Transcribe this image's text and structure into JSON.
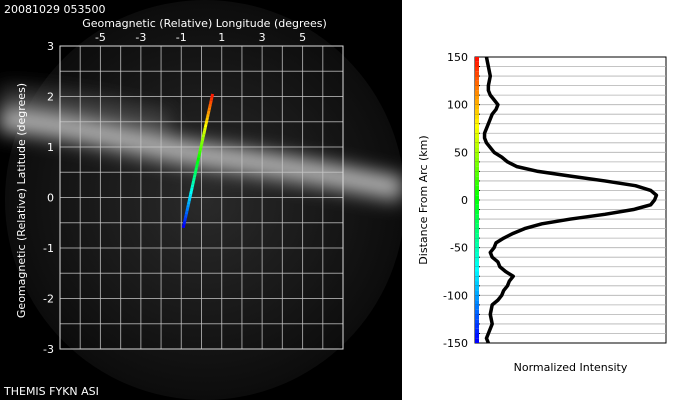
{
  "timestamp": "20081029 053500",
  "footer": "THEMIS FYKN ASI",
  "colors": {
    "background": "#000000",
    "grid": "#c8c8c8",
    "profile": "#000000"
  },
  "chart_data": [
    {
      "type": "scatter",
      "title": "",
      "xlabel": "Geomagnetic (Relative) Longitude (degrees)",
      "ylabel": "Geomagnetic (Relative) Latitude (degrees)",
      "xlim": [
        -7,
        7
      ],
      "ylim": [
        -3,
        3
      ],
      "xticks": [
        -5,
        -3,
        -1,
        1,
        3,
        5
      ],
      "yticks": [
        -3,
        -2,
        -1,
        0,
        1,
        2,
        3
      ],
      "grid": true,
      "series": [
        {
          "x_start": -0.9,
          "y_start": -0.6,
          "x_end": 0.55,
          "y_end": 2.05,
          "color_scale": "blue-to-red"
        }
      ]
    },
    {
      "type": "line",
      "title": "",
      "xlabel": "Normalized Intensity",
      "ylabel": "Distance From Arc (km)",
      "ylim": [
        -150,
        150
      ],
      "yticks": [
        -150,
        -100,
        -50,
        0,
        50,
        100,
        150
      ],
      "grid": true,
      "series": [
        {
          "y": [
            -150,
            -145,
            -140,
            -130,
            -120,
            -110,
            -105,
            -100,
            -95,
            -90,
            -85,
            -80,
            -75,
            -70,
            -65,
            -60,
            -55,
            -50,
            -45,
            -40,
            -35,
            -30,
            -25,
            -20,
            -15,
            -10,
            -5,
            0,
            5,
            10,
            15,
            20,
            25,
            30,
            35,
            40,
            45,
            50,
            55,
            60,
            65,
            70,
            75,
            80,
            85,
            90,
            95,
            100,
            105,
            110,
            115,
            120,
            130,
            140,
            150
          ],
          "x": [
            0.07,
            0.06,
            0.07,
            0.09,
            0.08,
            0.09,
            0.12,
            0.14,
            0.15,
            0.17,
            0.18,
            0.2,
            0.16,
            0.13,
            0.12,
            0.09,
            0.08,
            0.1,
            0.11,
            0.15,
            0.2,
            0.26,
            0.35,
            0.5,
            0.68,
            0.83,
            0.92,
            0.94,
            0.95,
            0.92,
            0.84,
            0.68,
            0.5,
            0.33,
            0.22,
            0.17,
            0.14,
            0.1,
            0.08,
            0.06,
            0.05,
            0.05,
            0.06,
            0.07,
            0.08,
            0.09,
            0.11,
            0.12,
            0.1,
            0.08,
            0.07,
            0.07,
            0.08,
            0.07,
            0.06
          ]
        }
      ]
    }
  ]
}
